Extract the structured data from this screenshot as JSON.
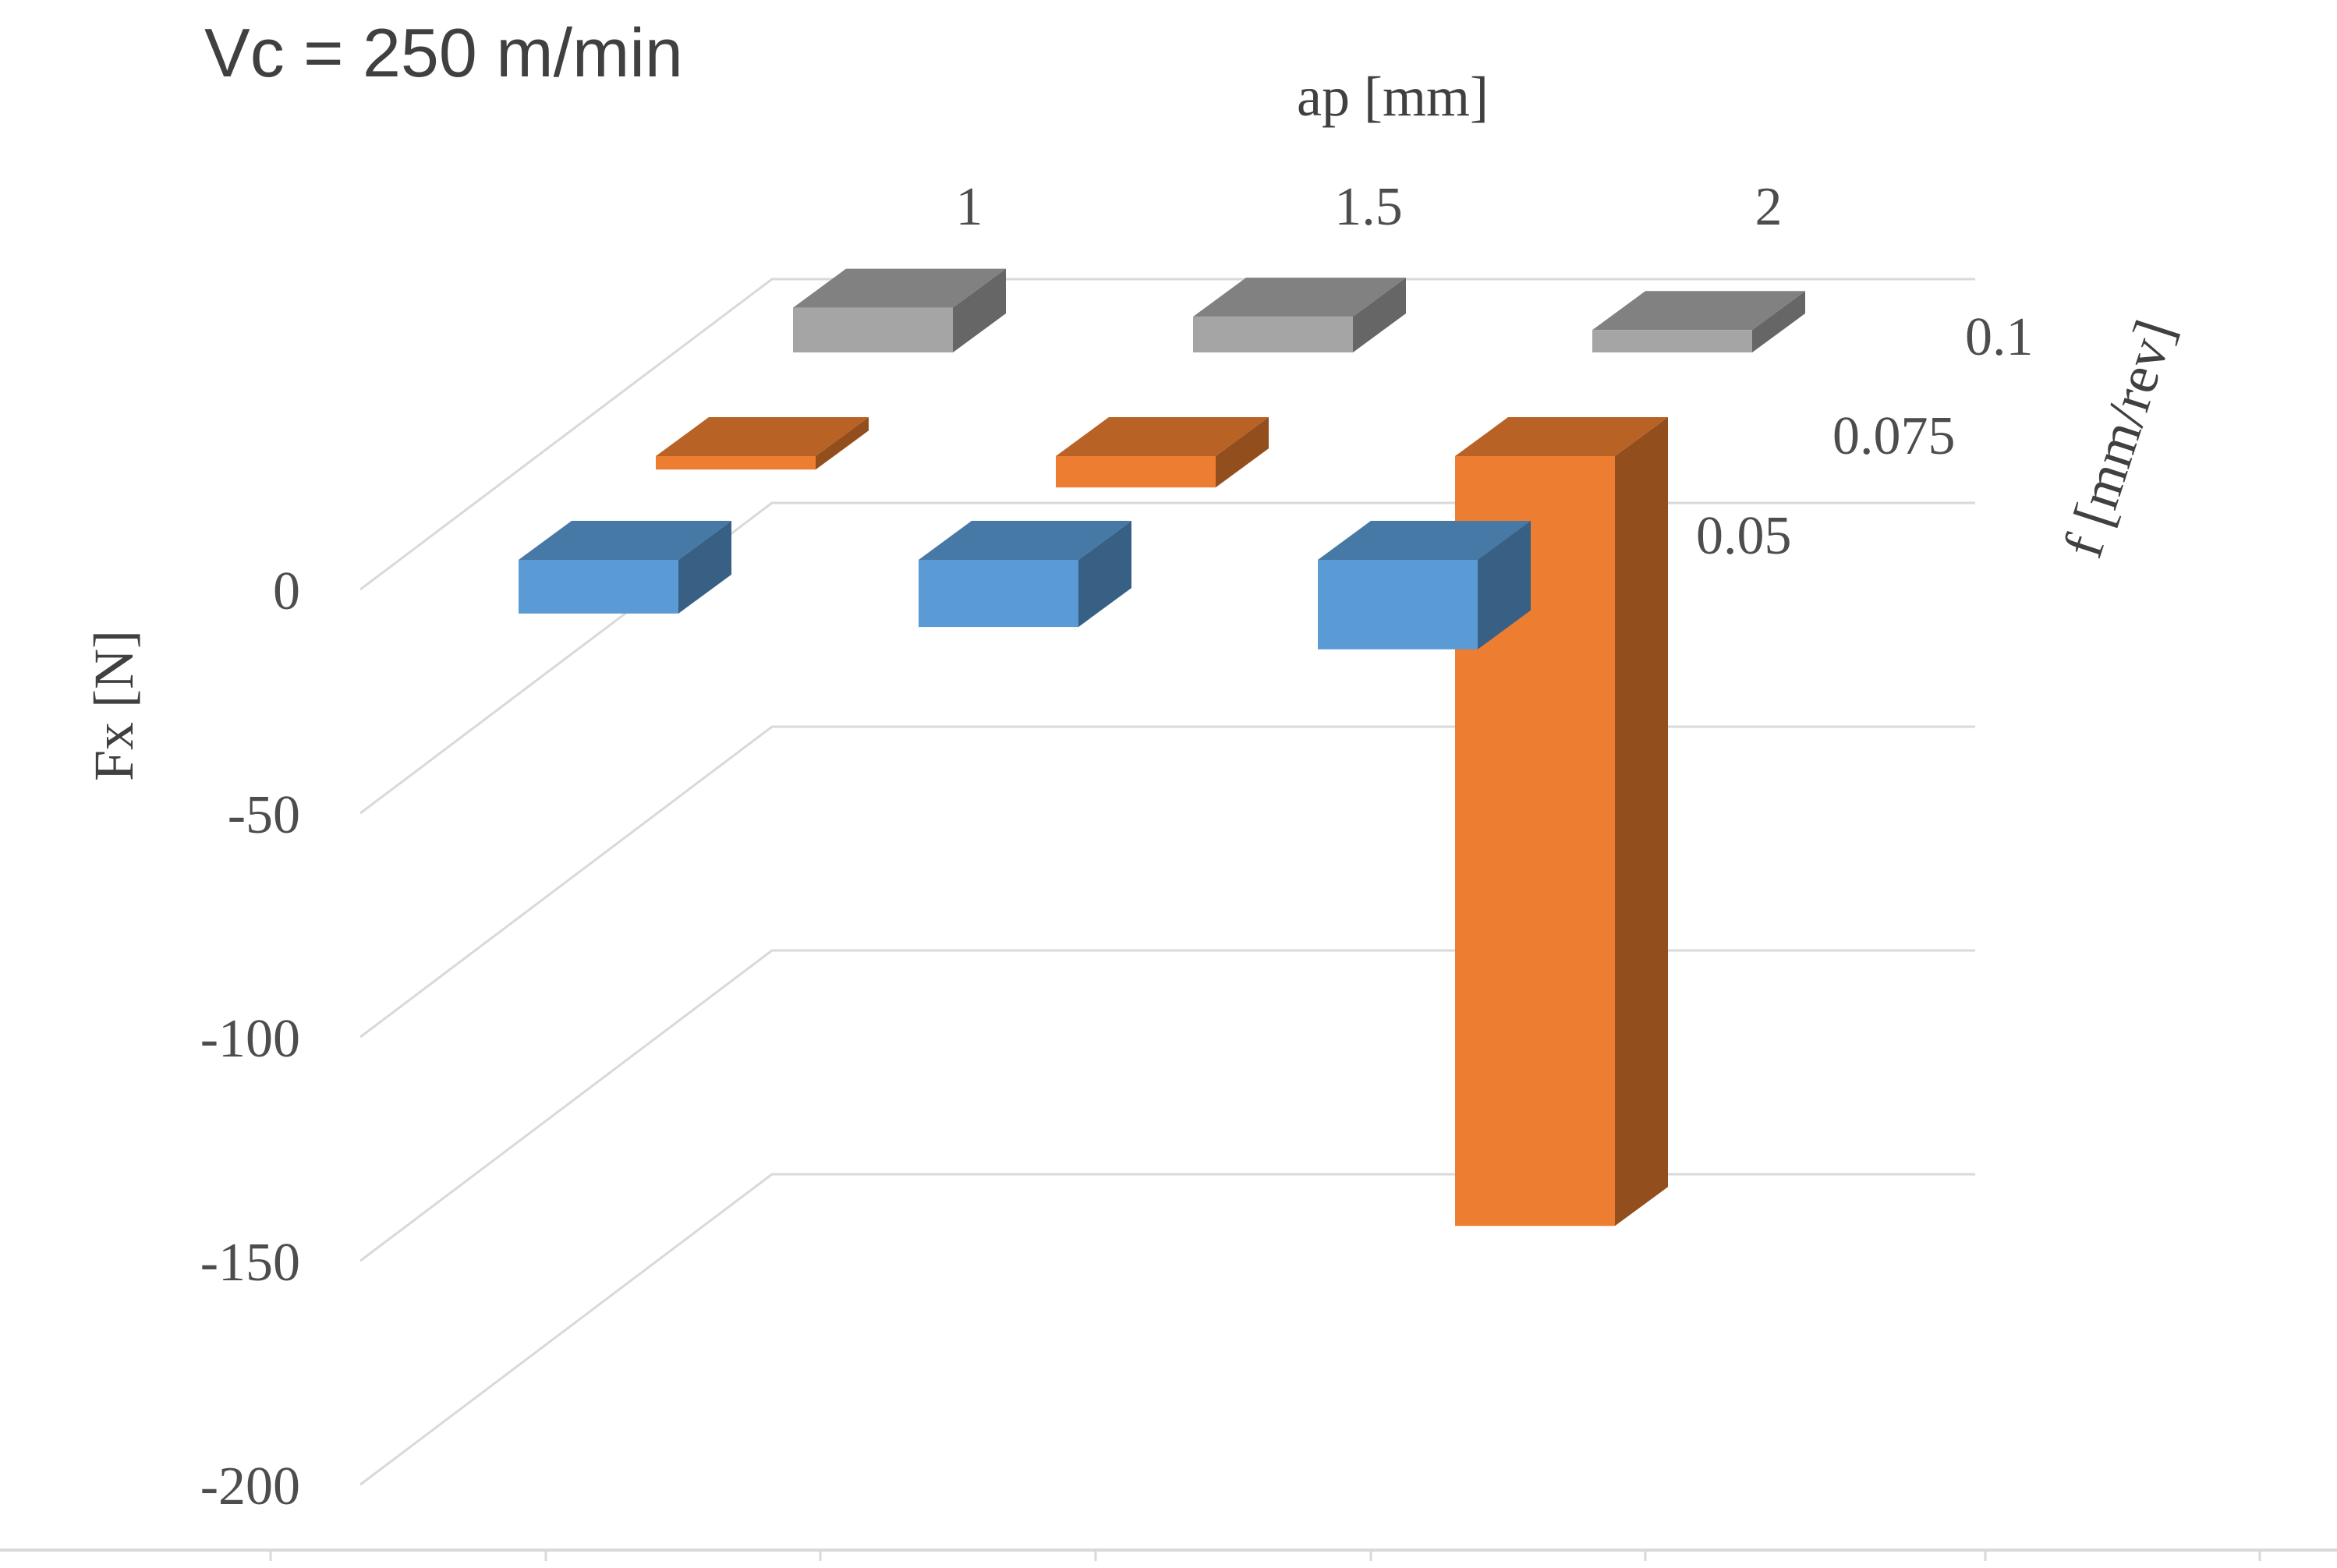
{
  "chart_data": {
    "type": "bar",
    "projection": "3d",
    "title": "Vc = 250 m/min",
    "xlabel": "ap [mm]",
    "ylabel": "Fx [N]",
    "zlabel": "f [mm/rev]",
    "categories": [
      "1",
      "1.5",
      "2"
    ],
    "ylim": [
      -200,
      0
    ],
    "yticks": [
      "0",
      "-50",
      "-100",
      "-150",
      "-200"
    ],
    "grid": true,
    "series": [
      {
        "name": "0.05",
        "color": "#5b9bd5",
        "values": [
          -12,
          -15,
          -20
        ]
      },
      {
        "name": "0.075",
        "color": "#ed7d31",
        "values": [
          -3,
          -7,
          -172
        ]
      },
      {
        "name": "0.1",
        "color": "#a5a5a5",
        "values": [
          10,
          8,
          5
        ]
      }
    ]
  }
}
